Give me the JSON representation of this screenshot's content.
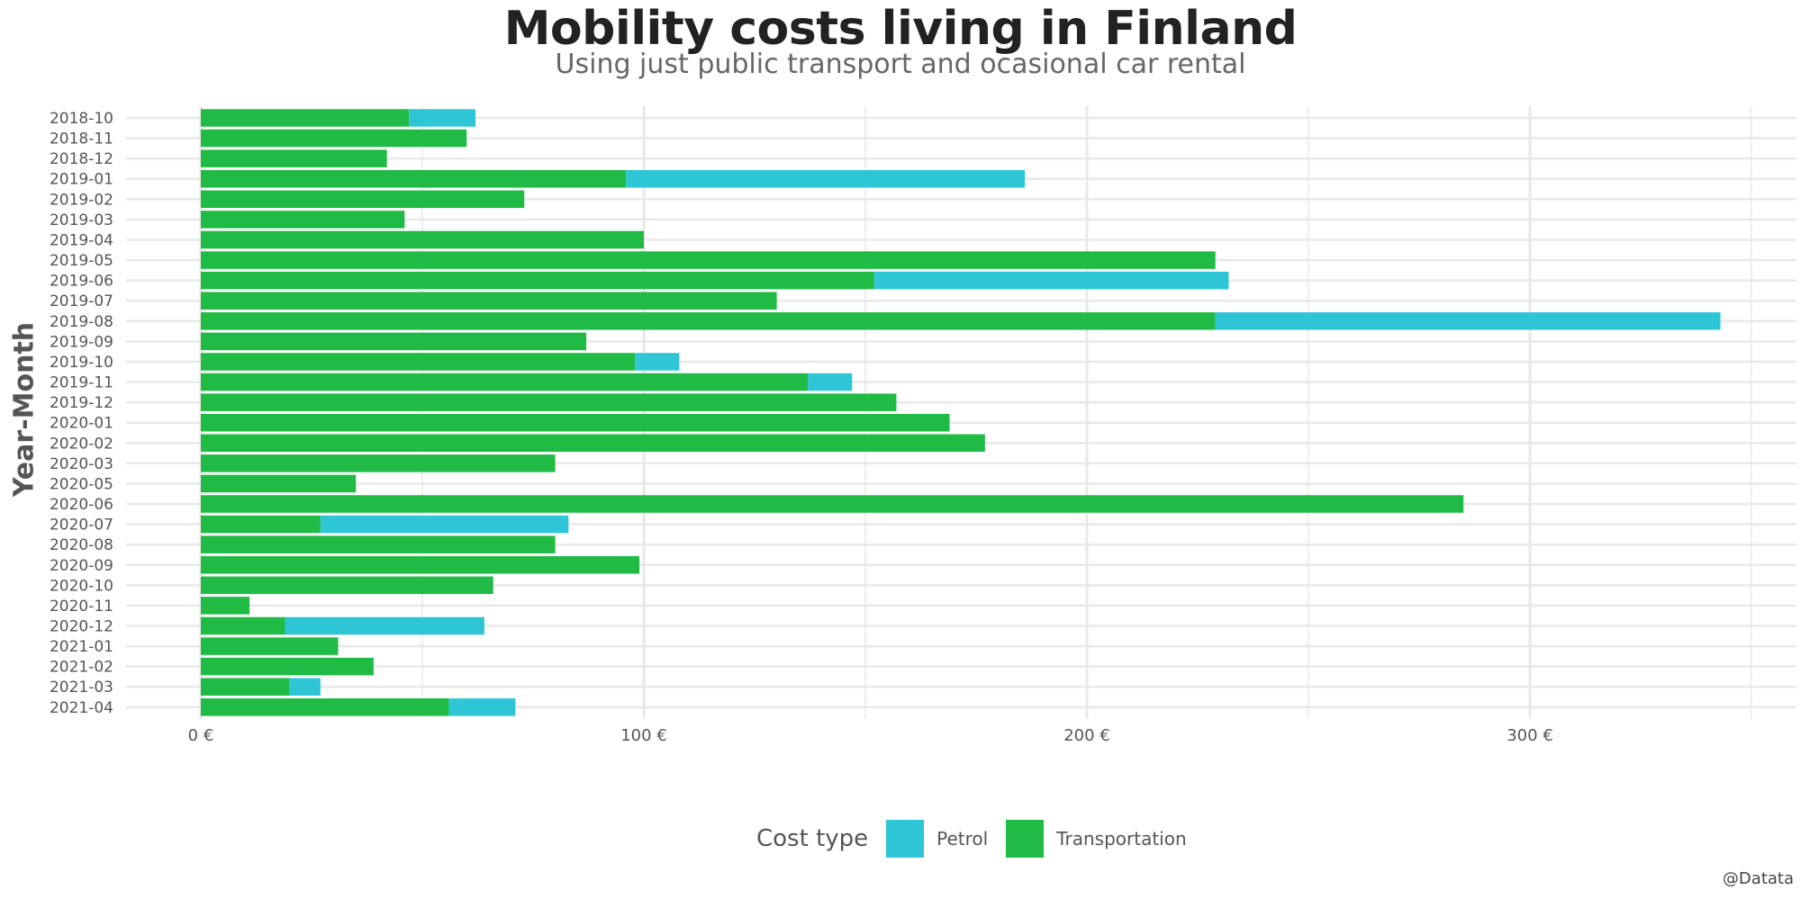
{
  "title": "Mobility costs living in Finland",
  "subtitle": "Using just public transport and ocasional car rental",
  "credit": "@Datata",
  "colors": {
    "Petrol": "#2ec6d6",
    "Transportation": "#20bb45",
    "grid": "#e8e8e8",
    "tick": "#555555"
  },
  "legend": {
    "title": "Cost type",
    "items": [
      "Petrol",
      "Transportation"
    ]
  },
  "chart_data": {
    "type": "bar",
    "orientation": "horizontal",
    "stacked": true,
    "xlabel": "",
    "ylabel": "Year-Month",
    "xlim": [
      0,
      362
    ],
    "xticks": [
      0,
      100,
      200,
      300
    ],
    "xtick_labels": [
      "0 €",
      "100 €",
      "200 €",
      "300 €"
    ],
    "grid": true,
    "legend_position": "bottom",
    "categories": [
      "2018-10",
      "2018-11",
      "2018-12",
      "2019-01",
      "2019-02",
      "2019-03",
      "2019-04",
      "2019-05",
      "2019-06",
      "2019-07",
      "2019-08",
      "2019-09",
      "2019-10",
      "2019-11",
      "2019-12",
      "2020-01",
      "2020-02",
      "2020-03",
      "2020-05",
      "2020-06",
      "2020-07",
      "2020-08",
      "2020-09",
      "2020-10",
      "2020-11",
      "2020-12",
      "2021-01",
      "2021-02",
      "2021-03",
      "2021-04"
    ],
    "series": [
      {
        "name": "Transportation",
        "values": [
          47,
          60,
          42,
          96,
          73,
          46,
          100,
          229,
          152,
          130,
          229,
          87,
          98,
          137,
          157,
          169,
          177,
          80,
          35,
          285,
          27,
          80,
          99,
          66,
          11,
          19,
          31,
          39,
          20,
          56
        ]
      },
      {
        "name": "Petrol",
        "values": [
          15,
          0,
          0,
          90,
          0,
          0,
          0,
          0,
          80,
          0,
          114,
          0,
          10,
          10,
          0,
          0,
          0,
          0,
          0,
          0,
          56,
          0,
          0,
          0,
          0,
          45,
          0,
          0,
          7,
          15
        ]
      }
    ]
  }
}
